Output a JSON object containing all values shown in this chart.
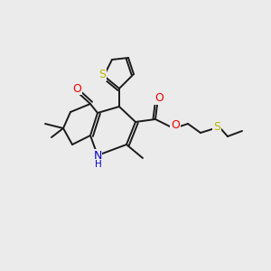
{
  "background_color": "#ebebeb",
  "bond_color": "#1a1a1a",
  "atom_colors": {
    "S": "#b8b800",
    "O": "#ee0000",
    "N": "#0000cc",
    "C": "#1a1a1a"
  },
  "figsize": [
    3.0,
    3.0
  ],
  "dpi": 100
}
